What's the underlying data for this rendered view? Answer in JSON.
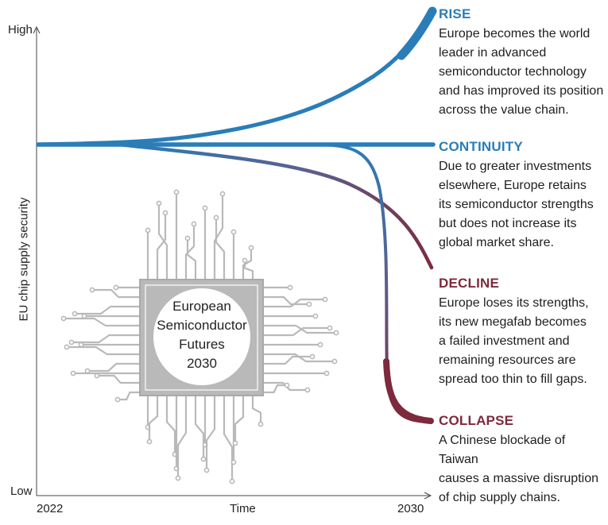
{
  "axes": {
    "y_label": "EU chip supply security",
    "y_high": "High",
    "y_low": "Low",
    "x_label": "Time",
    "x_start": "2022",
    "x_end": "2030"
  },
  "center_label": [
    "European",
    "Semiconductor",
    "Futures",
    "2030"
  ],
  "scenarios": [
    {
      "title": "RISE",
      "color": "#2a7db8",
      "description": [
        "Europe becomes the world",
        "leader in advanced",
        "semiconductor technology",
        "and has improved its position",
        "across the value chain."
      ]
    },
    {
      "title": "CONTINUITY",
      "color": "#2a7db8",
      "description": [
        "Due to greater investments",
        "elsewhere, Europe retains",
        "its semiconductor strengths",
        "but does not increase its",
        "global market share."
      ]
    },
    {
      "title": "DECLINE",
      "color": "#7d2a3c",
      "description": [
        "Europe loses its strengths,",
        "its new megafab becomes",
        "a failed investment and",
        "remaining resources are",
        "spread too thin to fill gaps."
      ]
    },
    {
      "title": "COLLAPSE",
      "color": "#7d2a3c",
      "description": [
        "A Chinese blockade of Taiwan",
        "causes a massive disruption",
        "of chip supply chains."
      ]
    }
  ],
  "colors": {
    "blue": "#2a7db8",
    "maroon": "#7d2a3c",
    "chip_gray": "#b9b9b9",
    "axis": "#444444"
  }
}
